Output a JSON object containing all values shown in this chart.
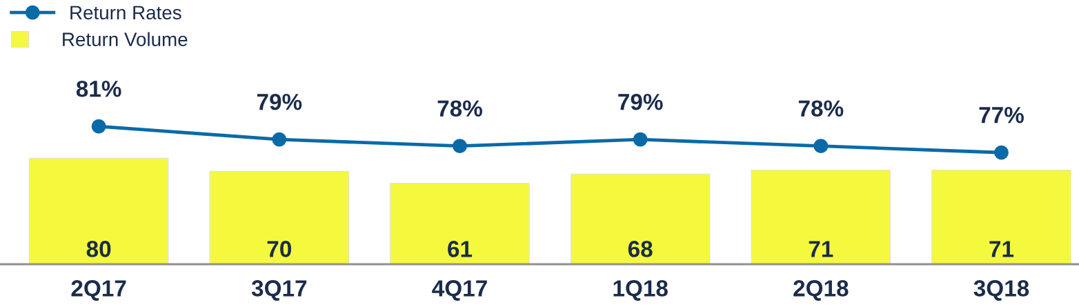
{
  "chart_data": [
    {
      "type": "bar",
      "categories": [
        "2Q17",
        "3Q17",
        "4Q17",
        "1Q18",
        "2Q18",
        "3Q18"
      ],
      "series": [
        {
          "name": "Return Volume",
          "color": "#f5f93d",
          "values": [
            80,
            70,
            61,
            68,
            71,
            71
          ]
        }
      ],
      "data_labels": true,
      "legend": "top left",
      "grid": false
    },
    {
      "type": "line",
      "categories": [
        null,
        null,
        null,
        null,
        null,
        null
      ],
      "series": [
        {
          "name": "Return Rates",
          "color": "#0a6aa8",
          "values": [
            81,
            79,
            78,
            79,
            78,
            77
          ],
          "value_labels": [
            "81%",
            "79%",
            "78%",
            "79%",
            "78%",
            "77%"
          ]
        }
      ],
      "legend": "top left",
      "marker": "circle",
      "line_style": "solid",
      "grid": false
    }
  ]
}
